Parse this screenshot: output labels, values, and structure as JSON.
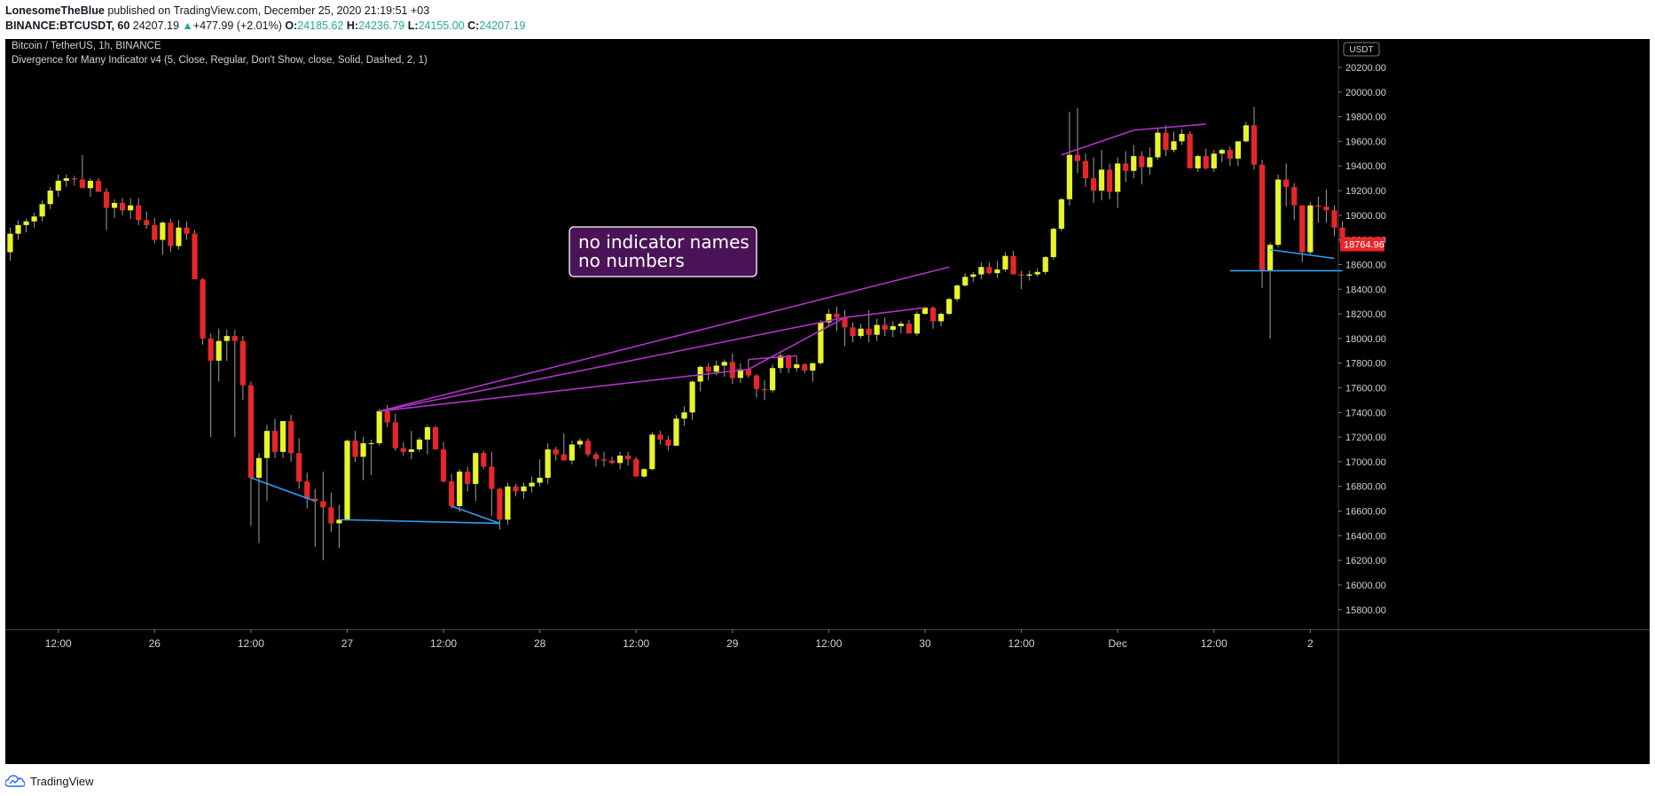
{
  "header": {
    "author": "LonesomeTheBlue",
    "published": "published on TradingView.com, December 25, 2020 21:19:51 +03",
    "symbol": "BINANCE:BTCUSDT, 60",
    "last": "24207.19",
    "change_arrow": "▲",
    "change": "+477.99 (+2.01%)",
    "o_label": "O:",
    "o_val": "24185.62",
    "h_label": "H:",
    "h_val": "24236.79",
    "l_label": "L:",
    "l_val": "24155.00",
    "c_label": "C:",
    "c_val": "24207.19"
  },
  "footer": {
    "brand": "TradingView",
    "logo_icon": "tradingview-cloud-icon"
  },
  "colors": {
    "background": "#000000",
    "bull": "#e8f42a",
    "bear": "#e8262a",
    "wick": "#9aa0a6",
    "bull_div": "#b033c8",
    "bear_div": "#2f9ef5",
    "price_tag": "#e8262a",
    "note_bg": "#4a1357"
  },
  "chart_data": {
    "type": "candlestick",
    "title": "Bitcoin / TetherUS, 1h, BINANCE",
    "indicator_label": "Divergence for Many Indicator v4 (5, Close, Regular, Don't Show, close, Solid, Dashed, 2, 1)",
    "currency_badge": "USDT",
    "last_price_tag": "18764.96",
    "note": [
      "no indicator names",
      "no numbers"
    ],
    "ylim": [
      15640,
      20430
    ],
    "y_ticks": [
      15800,
      16000,
      16200,
      16400,
      16600,
      16800,
      17000,
      17200,
      17400,
      17600,
      17800,
      18000,
      18200,
      18400,
      18600,
      18800,
      19000,
      19200,
      19400,
      19600,
      19800,
      20000,
      20200
    ],
    "y_tick_labels": [
      "15800.00",
      "16000.00",
      "16200.00",
      "16400.00",
      "16600.00",
      "16800.00",
      "17000.00",
      "17200.00",
      "17400.00",
      "17600.00",
      "17800.00",
      "18000.00",
      "18200.00",
      "18400.00",
      "18600.00",
      "18800.00",
      "19000.00",
      "19200.00",
      "19400.00",
      "19600.00",
      "19800.00",
      "20000.00",
      "20200.00"
    ],
    "x_ticks": [
      {
        "bar": 6,
        "label": "12:00"
      },
      {
        "bar": 18,
        "label": "26"
      },
      {
        "bar": 30,
        "label": "12:00"
      },
      {
        "bar": 42,
        "label": "27"
      },
      {
        "bar": 54,
        "label": "12:00"
      },
      {
        "bar": 66,
        "label": "28"
      },
      {
        "bar": 78,
        "label": "12:00"
      },
      {
        "bar": 90,
        "label": "29"
      },
      {
        "bar": 102,
        "label": "12:00"
      },
      {
        "bar": 114,
        "label": "30"
      },
      {
        "bar": 126,
        "label": "12:00"
      },
      {
        "bar": 138,
        "label": "Dec"
      },
      {
        "bar": 150,
        "label": "12:00"
      },
      {
        "bar": 162,
        "label": "2"
      }
    ],
    "x_extent": [
      -0.6,
      165.5
    ],
    "candles": [
      [
        18700,
        18900,
        18630,
        18850
      ],
      [
        18850,
        18960,
        18800,
        18920
      ],
      [
        18920,
        18970,
        18860,
        18950
      ],
      [
        18950,
        19020,
        18900,
        18990
      ],
      [
        18990,
        19120,
        18950,
        19090
      ],
      [
        19090,
        19230,
        19050,
        19200
      ],
      [
        19200,
        19330,
        19150,
        19280
      ],
      [
        19280,
        19330,
        19230,
        19300
      ],
      [
        19300,
        19320,
        19240,
        19290
      ],
      [
        19290,
        19490,
        19240,
        19220
      ],
      [
        19220,
        19300,
        19150,
        19280
      ],
      [
        19280,
        19300,
        19190,
        19190
      ],
      [
        19190,
        19220,
        18880,
        19060
      ],
      [
        19060,
        19130,
        18980,
        19100
      ],
      [
        19100,
        19140,
        19000,
        19040
      ],
      [
        19040,
        19140,
        18970,
        19080
      ],
      [
        19080,
        19140,
        18920,
        18960
      ],
      [
        18960,
        19030,
        18890,
        18920
      ],
      [
        18920,
        18980,
        18770,
        18800
      ],
      [
        18800,
        18950,
        18680,
        18940
      ],
      [
        18940,
        18970,
        18700,
        18750
      ],
      [
        18750,
        18960,
        18720,
        18900
      ],
      [
        18900,
        18950,
        18800,
        18850
      ],
      [
        18850,
        18880,
        18490,
        18480
      ],
      [
        18480,
        18490,
        17950,
        18000
      ],
      [
        18000,
        18040,
        17200,
        17820
      ],
      [
        17820,
        18080,
        17650,
        17980
      ],
      [
        17980,
        18070,
        17820,
        18020
      ],
      [
        18020,
        18070,
        17200,
        17980
      ],
      [
        17980,
        18020,
        17500,
        17620
      ],
      [
        17620,
        17650,
        16480,
        16870
      ],
      [
        16870,
        17070,
        16340,
        17030
      ],
      [
        17030,
        17300,
        16680,
        17250
      ],
      [
        17250,
        17350,
        17030,
        17080
      ],
      [
        17080,
        17320,
        17030,
        17330
      ],
      [
        17330,
        17380,
        17000,
        17070
      ],
      [
        17070,
        17190,
        16780,
        16840
      ],
      [
        16840,
        16910,
        16620,
        16700
      ],
      [
        16700,
        16780,
        16310,
        16680
      ],
      [
        16680,
        16920,
        16200,
        16630
      ],
      [
        16630,
        16750,
        16430,
        16500
      ],
      [
        16500,
        16650,
        16300,
        16530
      ],
      [
        16530,
        17180,
        16520,
        17170
      ],
      [
        17170,
        17250,
        17000,
        17040
      ],
      [
        17040,
        17200,
        16850,
        17150
      ],
      [
        17150,
        17180,
        16890,
        17150
      ],
      [
        17150,
        17430,
        17130,
        17410
      ],
      [
        17410,
        17460,
        17280,
        17320
      ],
      [
        17320,
        17390,
        17090,
        17110
      ],
      [
        17110,
        17160,
        17050,
        17080
      ],
      [
        17080,
        17250,
        17020,
        17100
      ],
      [
        17100,
        17200,
        17080,
        17180
      ],
      [
        17180,
        17300,
        17060,
        17280
      ],
      [
        17280,
        17290,
        17100,
        17100
      ],
      [
        17100,
        17160,
        16830,
        16840
      ],
      [
        16840,
        16900,
        16620,
        16640
      ],
      [
        16640,
        16940,
        16590,
        16920
      ],
      [
        16920,
        16960,
        16760,
        16820
      ],
      [
        16820,
        17080,
        16680,
        17070
      ],
      [
        17070,
        17090,
        16940,
        16960
      ],
      [
        16960,
        17080,
        16560,
        16780
      ],
      [
        16780,
        16790,
        16450,
        16530
      ],
      [
        16530,
        16830,
        16490,
        16800
      ],
      [
        16800,
        16820,
        16720,
        16760
      ],
      [
        16760,
        16830,
        16700,
        16800
      ],
      [
        16800,
        16880,
        16750,
        16830
      ],
      [
        16830,
        17020,
        16800,
        16870
      ],
      [
        16870,
        17150,
        16820,
        17100
      ],
      [
        17100,
        17120,
        17010,
        17060
      ],
      [
        17060,
        17230,
        17020,
        17010
      ],
      [
        17010,
        17170,
        16980,
        17140
      ],
      [
        17140,
        17190,
        17110,
        17170
      ],
      [
        17170,
        17190,
        17040,
        17060
      ],
      [
        17060,
        17080,
        16960,
        17020
      ],
      [
        17020,
        17080,
        16960,
        17010
      ],
      [
        17010,
        17040,
        16980,
        16990
      ],
      [
        16990,
        17080,
        16940,
        17050
      ],
      [
        17050,
        17080,
        16970,
        17020
      ],
      [
        17020,
        17040,
        16880,
        16880
      ],
      [
        16880,
        16950,
        16870,
        16940
      ],
      [
        16940,
        17240,
        16930,
        17220
      ],
      [
        17220,
        17250,
        17140,
        17180
      ],
      [
        17180,
        17210,
        17090,
        17130
      ],
      [
        17130,
        17380,
        17140,
        17350
      ],
      [
        17350,
        17450,
        17290,
        17400
      ],
      [
        17400,
        17660,
        17340,
        17650
      ],
      [
        17650,
        17780,
        17570,
        17770
      ],
      [
        17770,
        17800,
        17660,
        17730
      ],
      [
        17730,
        17820,
        17700,
        17780
      ],
      [
        17780,
        17830,
        17690,
        17810
      ],
      [
        17810,
        17880,
        17630,
        17680
      ],
      [
        17680,
        17800,
        17640,
        17750
      ],
      [
        17750,
        17830,
        17680,
        17700
      ],
      [
        17700,
        17710,
        17520,
        17590
      ],
      [
        17590,
        17660,
        17500,
        17580
      ],
      [
        17580,
        17790,
        17560,
        17760
      ],
      [
        17760,
        17880,
        17720,
        17860
      ],
      [
        17860,
        17870,
        17720,
        17760
      ],
      [
        17760,
        17860,
        17730,
        17790
      ],
      [
        17790,
        17800,
        17720,
        17740
      ],
      [
        17740,
        17800,
        17650,
        17800
      ],
      [
        17800,
        18150,
        17790,
        18130
      ],
      [
        18130,
        18240,
        18090,
        18200
      ],
      [
        18200,
        18260,
        18060,
        18170
      ],
      [
        18170,
        18230,
        17940,
        18090
      ],
      [
        18090,
        18130,
        17970,
        18020
      ],
      [
        18020,
        18120,
        18000,
        18080
      ],
      [
        18080,
        18230,
        17970,
        18030
      ],
      [
        18030,
        18160,
        17980,
        18110
      ],
      [
        18110,
        18170,
        18020,
        18070
      ],
      [
        18070,
        18140,
        18010,
        18100
      ],
      [
        18100,
        18140,
        18040,
        18120
      ],
      [
        18120,
        18150,
        18050,
        18040
      ],
      [
        18040,
        18220,
        18020,
        18200
      ],
      [
        18200,
        18260,
        18190,
        18250
      ],
      [
        18250,
        18260,
        18080,
        18140
      ],
      [
        18140,
        18210,
        18100,
        18200
      ],
      [
        18200,
        18330,
        18190,
        18320
      ],
      [
        18320,
        18440,
        18300,
        18430
      ],
      [
        18430,
        18530,
        18420,
        18500
      ],
      [
        18500,
        18540,
        18460,
        18520
      ],
      [
        18520,
        18620,
        18480,
        18580
      ],
      [
        18580,
        18620,
        18520,
        18530
      ],
      [
        18530,
        18630,
        18490,
        18560
      ],
      [
        18560,
        18700,
        18540,
        18670
      ],
      [
        18670,
        18710,
        18560,
        18520
      ],
      [
        18520,
        18550,
        18400,
        18510
      ],
      [
        18510,
        18550,
        18470,
        18520
      ],
      [
        18520,
        18570,
        18500,
        18540
      ],
      [
        18540,
        18670,
        18520,
        18660
      ],
      [
        18660,
        18900,
        18640,
        18890
      ],
      [
        18890,
        19140,
        18870,
        19130
      ],
      [
        19130,
        19840,
        19080,
        19490
      ],
      [
        19490,
        19870,
        19340,
        19440
      ],
      [
        19440,
        19500,
        19230,
        19300
      ],
      [
        19300,
        19470,
        19100,
        19200
      ],
      [
        19200,
        19530,
        19120,
        19370
      ],
      [
        19370,
        19420,
        19130,
        19190
      ],
      [
        19190,
        19470,
        19060,
        19420
      ],
      [
        19420,
        19520,
        19270,
        19360
      ],
      [
        19360,
        19570,
        19300,
        19480
      ],
      [
        19480,
        19520,
        19250,
        19390
      ],
      [
        19390,
        19550,
        19330,
        19470
      ],
      [
        19470,
        19710,
        19450,
        19670
      ],
      [
        19670,
        19730,
        19480,
        19530
      ],
      [
        19530,
        19680,
        19510,
        19600
      ],
      [
        19600,
        19700,
        19570,
        19660
      ],
      [
        19660,
        19680,
        19400,
        19380
      ],
      [
        19380,
        19490,
        19350,
        19480
      ],
      [
        19480,
        19540,
        19370,
        19380
      ],
      [
        19380,
        19530,
        19350,
        19500
      ],
      [
        19500,
        19540,
        19430,
        19530
      ],
      [
        19530,
        19560,
        19400,
        19460
      ],
      [
        19460,
        19580,
        19400,
        19600
      ],
      [
        19600,
        19760,
        19590,
        19730
      ],
      [
        19730,
        19880,
        19370,
        19410
      ],
      [
        19410,
        19450,
        18410,
        18550
      ],
      [
        18550,
        18780,
        18000,
        18760
      ],
      [
        18760,
        19330,
        18740,
        19290
      ],
      [
        19290,
        19420,
        19070,
        19230
      ],
      [
        19230,
        19260,
        18960,
        19080
      ],
      [
        19080,
        19080,
        18620,
        18700
      ],
      [
        18700,
        19110,
        18680,
        19080
      ],
      [
        19080,
        19150,
        18940,
        19070
      ],
      [
        19070,
        19210,
        18940,
        19040
      ],
      [
        19040,
        19080,
        18830,
        18900
      ],
      [
        18900,
        18950,
        18720,
        18770
      ]
    ],
    "divergences": [
      {
        "type": "bullish",
        "from": [
          46,
          17410
        ],
        "to": [
          117,
          18580
        ]
      },
      {
        "type": "bullish",
        "from": [
          46,
          17410
        ],
        "to": [
          104,
          18170
        ]
      },
      {
        "type": "bullish",
        "from": [
          46,
          17410
        ],
        "to": [
          92,
          17750
        ]
      },
      {
        "type": "bullish",
        "from": [
          92,
          17750
        ],
        "to": [
          104,
          18170
        ]
      },
      {
        "type": "bullish",
        "from": [
          104,
          18170
        ],
        "to": [
          114,
          18250
        ]
      },
      {
        "type": "bullish",
        "from": [
          92,
          17830
        ],
        "to": [
          98,
          17860
        ]
      },
      {
        "type": "bullish",
        "from": [
          131,
          19490
        ],
        "to": [
          140,
          19690
        ]
      },
      {
        "type": "bullish",
        "from": [
          140,
          19690
        ],
        "to": [
          149,
          19740
        ]
      },
      {
        "type": "bearish",
        "from": [
          30,
          16870
        ],
        "to": [
          38,
          16680
        ]
      },
      {
        "type": "bearish",
        "from": [
          41,
          16530
        ],
        "to": [
          61,
          16500
        ]
      },
      {
        "type": "bearish",
        "from": [
          55,
          16640
        ],
        "to": [
          61,
          16500
        ]
      },
      {
        "type": "bearish",
        "from": [
          152,
          18550
        ],
        "to": [
          166,
          18550
        ]
      },
      {
        "type": "bearish",
        "from": [
          157,
          18720
        ],
        "to": [
          165,
          18650
        ]
      }
    ]
  }
}
